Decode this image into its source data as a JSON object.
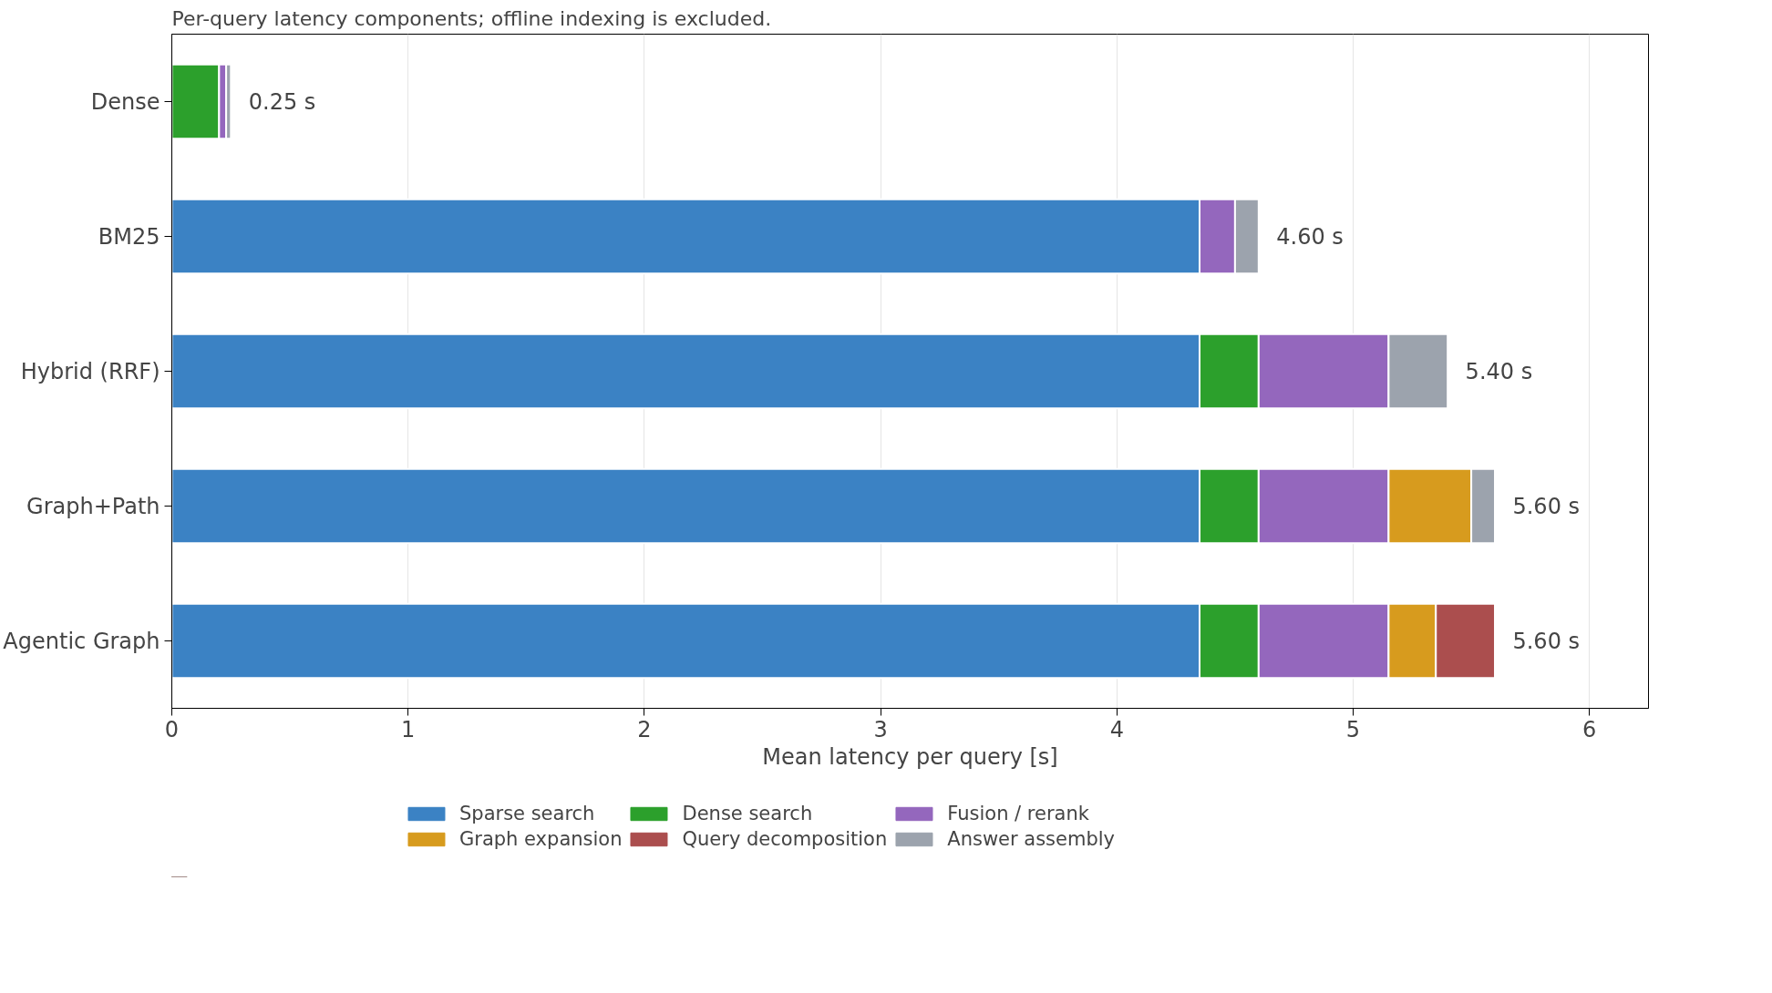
{
  "chart_data": {
    "type": "bar",
    "orientation": "horizontal",
    "stacked": true,
    "title": "Per-query latency components; offline indexing is excluded.",
    "xlabel": "Mean latency per query [s]",
    "categories": [
      "Dense",
      "BM25",
      "Hybrid (RRF)",
      "Graph+Path",
      "Agentic Graph"
    ],
    "series": [
      {
        "name": "Sparse search",
        "color": "#3b82c4",
        "values": [
          null,
          4.35,
          4.35,
          4.35,
          4.35
        ]
      },
      {
        "name": "Dense search",
        "color": "#2ca02c",
        "values": [
          0.2,
          null,
          0.25,
          0.25,
          0.25
        ]
      },
      {
        "name": "Fusion / rerank",
        "color": "#9467bd",
        "values": [
          0.03,
          0.15,
          0.55,
          0.55,
          0.55
        ]
      },
      {
        "name": "Graph expansion",
        "color": "#d79b1e",
        "values": [
          null,
          null,
          null,
          0.35,
          0.2
        ]
      },
      {
        "name": "Query decomposition",
        "color": "#ab4e4e",
        "values": [
          null,
          null,
          null,
          null,
          0.25
        ]
      },
      {
        "name": "Answer assembly",
        "color": "#9ca3ad",
        "values": [
          0.02,
          0.1,
          0.25,
          0.1,
          null
        ]
      }
    ],
    "totals": [
      "0.25 s",
      "4.60 s",
      "5.40 s",
      "5.60 s",
      "5.60 s"
    ],
    "xlim": [
      0,
      6.25
    ],
    "xticks": [
      0,
      1,
      2,
      3,
      4,
      5,
      6
    ],
    "grid": "x",
    "legend": "bottom"
  }
}
